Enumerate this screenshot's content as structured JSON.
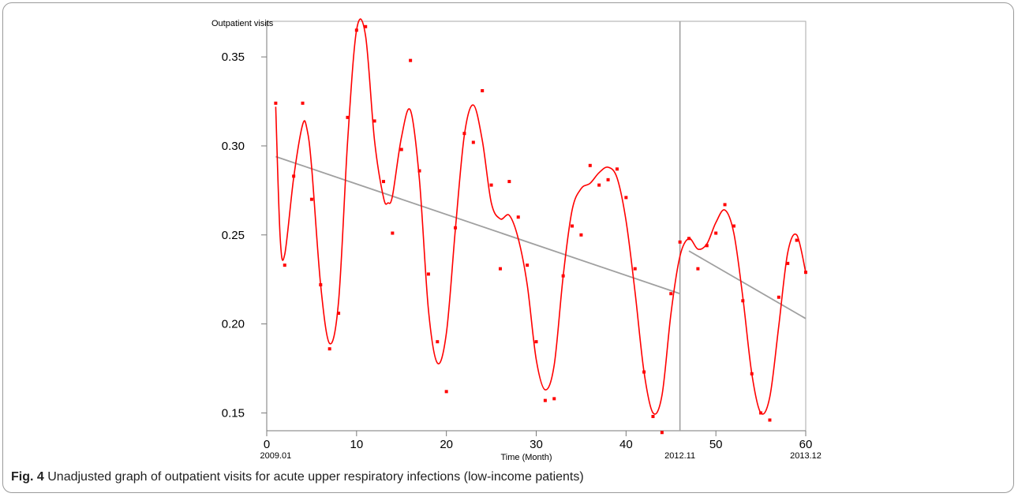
{
  "caption": {
    "label": "Fig. 4",
    "text": "Unadjusted graph of outpatient visits for acute upper respiratory infections (low-income patients)"
  },
  "chart_data": {
    "type": "scatter",
    "ylabel": "Outpatient  visits",
    "xlabel": "Time (Month)",
    "xlim": [
      0,
      60
    ],
    "ylim": [
      0.14,
      0.37
    ],
    "x_ticks": [
      0,
      10,
      20,
      30,
      40,
      50,
      60
    ],
    "y_ticks": [
      0.15,
      0.2,
      0.25,
      0.3,
      0.35
    ],
    "x_date_labels": [
      {
        "x": 1,
        "label": "2009.01"
      },
      {
        "x": 46,
        "label": "2012.11"
      },
      {
        "x": 60,
        "label": "2013.12"
      }
    ],
    "intervention_x": 46,
    "colors": {
      "points": "#ff0000",
      "smooth": "#ff0000",
      "trend": "#a0a0a0",
      "intervention": "#a0a0a0"
    },
    "points": {
      "x": [
        1,
        2,
        3,
        4,
        5,
        6,
        7,
        8,
        9,
        10,
        11,
        12,
        13,
        14,
        15,
        16,
        17,
        18,
        19,
        20,
        21,
        22,
        23,
        24,
        25,
        26,
        27,
        28,
        29,
        30,
        31,
        32,
        33,
        34,
        35,
        36,
        37,
        38,
        39,
        40,
        41,
        42,
        43,
        44,
        45,
        46,
        47,
        48,
        49,
        50,
        51,
        52,
        53,
        54,
        55,
        56,
        57,
        58,
        59,
        60
      ],
      "y": [
        0.324,
        0.233,
        0.283,
        0.324,
        0.27,
        0.222,
        0.186,
        0.206,
        0.316,
        0.365,
        0.367,
        0.314,
        0.28,
        0.251,
        0.298,
        0.348,
        0.286,
        0.228,
        0.19,
        0.162,
        0.254,
        0.307,
        0.302,
        0.331,
        0.278,
        0.231,
        0.28,
        0.26,
        0.233,
        0.19,
        0.157,
        0.158,
        0.227,
        0.255,
        0.25,
        0.289,
        0.278,
        0.281,
        0.287,
        0.271,
        0.231,
        0.173,
        0.148,
        0.139,
        0.217,
        0.246,
        0.248,
        0.231,
        0.244,
        0.251,
        0.267,
        0.255,
        0.213,
        0.172,
        0.15,
        0.146,
        0.215,
        0.234,
        0.247,
        0.229
      ]
    },
    "smooth": {
      "x": [
        1,
        1.5,
        2,
        3,
        4,
        4.5,
        5,
        6,
        7,
        8,
        9,
        10,
        11,
        12,
        13,
        13.5,
        14,
        15,
        16,
        17,
        18,
        19,
        20,
        21,
        22,
        23,
        24,
        25,
        26,
        27,
        28,
        29,
        30,
        31,
        32,
        33,
        34,
        35,
        36,
        37,
        38,
        39,
        40,
        41,
        42,
        43,
        44,
        45,
        46,
        47,
        48,
        49,
        50,
        51,
        52,
        53,
        54,
        55,
        56,
        57,
        58,
        59,
        60
      ],
      "y": [
        0.322,
        0.248,
        0.239,
        0.282,
        0.312,
        0.309,
        0.288,
        0.222,
        0.189,
        0.213,
        0.302,
        0.365,
        0.362,
        0.303,
        0.271,
        0.268,
        0.272,
        0.305,
        0.32,
        0.281,
        0.208,
        0.178,
        0.195,
        0.253,
        0.306,
        0.323,
        0.303,
        0.268,
        0.259,
        0.261,
        0.248,
        0.222,
        0.18,
        0.163,
        0.177,
        0.227,
        0.264,
        0.276,
        0.279,
        0.285,
        0.288,
        0.282,
        0.258,
        0.218,
        0.173,
        0.15,
        0.16,
        0.206,
        0.238,
        0.248,
        0.242,
        0.245,
        0.257,
        0.264,
        0.251,
        0.215,
        0.172,
        0.15,
        0.159,
        0.199,
        0.24,
        0.25,
        0.229
      ]
    },
    "trend_segments": [
      {
        "x": [
          1,
          46
        ],
        "y": [
          0.294,
          0.217
        ]
      },
      {
        "x": [
          47,
          60
        ],
        "y": [
          0.241,
          0.203
        ]
      }
    ]
  }
}
